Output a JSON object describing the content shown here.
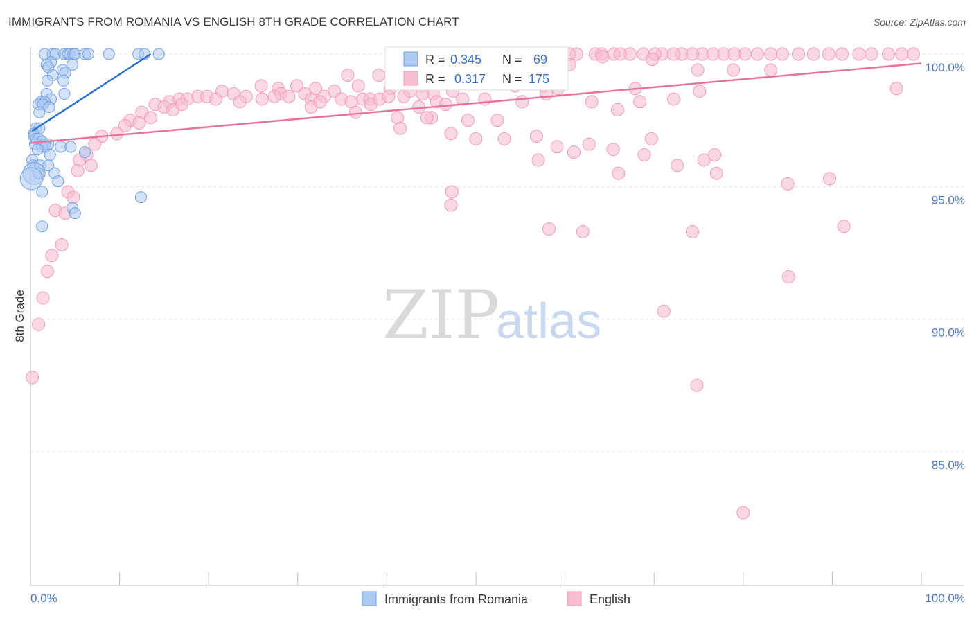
{
  "title": "IMMIGRANTS FROM ROMANIA VS ENGLISH 8TH GRADE CORRELATION CHART",
  "source": "Source: ZipAtlas.com",
  "watermark": {
    "zip": "ZIP",
    "atlas": "atlas"
  },
  "colors": {
    "blue": "#6f9fe0",
    "blue_fill": "#aecbf2",
    "blue_line": "#2a6fd0",
    "pink": "#f39ab8",
    "pink_fill": "#f7bed0",
    "pink_line": "#e8729a",
    "axis_text": "#4a77c8"
  },
  "stats": {
    "r_label": "R =",
    "n_label": "N =",
    "series": [
      {
        "name": "Immigrants from Romania",
        "r": "0.345",
        "n": "69"
      },
      {
        "name": "English",
        "r": "0.317",
        "n": "175"
      }
    ]
  },
  "chart_data": {
    "type": "scatter",
    "title": "IMMIGRANTS FROM ROMANIA VS ENGLISH 8TH GRADE CORRELATION CHART",
    "xlabel": "",
    "ylabel": "8th Grade",
    "xlim": [
      0,
      100
    ],
    "ylim": [
      80.5,
      101.0
    ],
    "x_tick_labels": [
      "0.0%",
      "100.0%"
    ],
    "y_ticks": [
      85,
      90,
      95,
      100
    ],
    "y_tick_labels": [
      "85.0%",
      "90.0%",
      "95.0%",
      "100.0%"
    ],
    "legend": [
      "Immigrants from Romania",
      "English"
    ],
    "legend_position": "bottom",
    "series": [
      {
        "name": "Immigrants from Romania",
        "trend": {
          "x": [
            0.2,
            13.5
          ],
          "y": [
            97.1,
            100.0
          ]
        },
        "points": [
          [
            1.6,
            100
          ],
          [
            2.5,
            100
          ],
          [
            2.8,
            100
          ],
          [
            3.8,
            100
          ],
          [
            4.2,
            100
          ],
          [
            4.4,
            100
          ],
          [
            4.8,
            100
          ],
          [
            5.0,
            100
          ],
          [
            6.1,
            100
          ],
          [
            6.5,
            100
          ],
          [
            8.8,
            100
          ],
          [
            12.1,
            100
          ],
          [
            12.8,
            100
          ],
          [
            14.4,
            100
          ],
          [
            2.3,
            99.7
          ],
          [
            1.8,
            99.6
          ],
          [
            4.7,
            99.6
          ],
          [
            2.0,
            99.5
          ],
          [
            3.6,
            99.4
          ],
          [
            3.9,
            99.3
          ],
          [
            2.5,
            99.2
          ],
          [
            1.9,
            99.0
          ],
          [
            3.7,
            99.0
          ],
          [
            3.8,
            98.5
          ],
          [
            1.8,
            98.5
          ],
          [
            2.3,
            98.3
          ],
          [
            1.2,
            98.2
          ],
          [
            1.6,
            98.2
          ],
          [
            0.9,
            98.1
          ],
          [
            1.4,
            98.1
          ],
          [
            2.1,
            98.0
          ],
          [
            1.0,
            97.8
          ],
          [
            0.6,
            97.2
          ],
          [
            1.0,
            97.2
          ],
          [
            0.4,
            97.0
          ],
          [
            0.4,
            96.9
          ],
          [
            0.6,
            96.8
          ],
          [
            0.9,
            96.8
          ],
          [
            1.3,
            96.7
          ],
          [
            0.5,
            96.6
          ],
          [
            1.6,
            96.6
          ],
          [
            2.0,
            96.6
          ],
          [
            1.3,
            96.5
          ],
          [
            1.7,
            96.5
          ],
          [
            0.8,
            96.4
          ],
          [
            3.4,
            96.5
          ],
          [
            4.5,
            96.5
          ],
          [
            6.1,
            96.3
          ],
          [
            2.2,
            96.2
          ],
          [
            0.2,
            96.0
          ],
          [
            0.3,
            95.8
          ],
          [
            1.1,
            95.8
          ],
          [
            2.0,
            95.8
          ],
          [
            0.4,
            95.5
          ],
          [
            0.9,
            95.5
          ],
          [
            2.7,
            95.5
          ],
          [
            0.1,
            95.3
          ],
          [
            3.1,
            95.2
          ],
          [
            1.3,
            94.8
          ],
          [
            12.4,
            94.6
          ],
          [
            4.7,
            94.2
          ],
          [
            5.0,
            94.0
          ],
          [
            1.3,
            93.5
          ]
        ]
      },
      {
        "name": "English",
        "trend": {
          "x": [
            0.0,
            100.0
          ],
          "y": [
            96.65,
            99.65
          ]
        },
        "points": [
          [
            58.9,
            100
          ],
          [
            61.3,
            100
          ],
          [
            63.4,
            100
          ],
          [
            65.5,
            100
          ],
          [
            67.3,
            100
          ],
          [
            68.8,
            100
          ],
          [
            70.9,
            100
          ],
          [
            73.1,
            100
          ],
          [
            75.4,
            100
          ],
          [
            77.8,
            100
          ],
          [
            80.2,
            100
          ],
          [
            83.1,
            100
          ],
          [
            86.2,
            100
          ],
          [
            89.6,
            100
          ],
          [
            93.0,
            100
          ],
          [
            96.3,
            100
          ],
          [
            99.1,
            100
          ],
          [
            60.5,
            100
          ],
          [
            64.1,
            100
          ],
          [
            66.2,
            100
          ],
          [
            70.1,
            100
          ],
          [
            72.2,
            100
          ],
          [
            74.3,
            100
          ],
          [
            76.6,
            100
          ],
          [
            79.0,
            100
          ],
          [
            81.6,
            100
          ],
          [
            84.4,
            100
          ],
          [
            87.9,
            100
          ],
          [
            91.1,
            100
          ],
          [
            94.4,
            100
          ],
          [
            97.8,
            100
          ],
          [
            57.8,
            99.8
          ],
          [
            54.8,
            99.6
          ],
          [
            64.2,
            99.9
          ],
          [
            69.8,
            99.8
          ],
          [
            48.3,
            99.6
          ],
          [
            50.3,
            99.5
          ],
          [
            52.6,
            99.4
          ],
          [
            56.7,
            99.5
          ],
          [
            60.5,
            99.6
          ],
          [
            74.9,
            99.4
          ],
          [
            78.9,
            99.4
          ],
          [
            83.1,
            99.4
          ],
          [
            35.6,
            99.2
          ],
          [
            39.1,
            99.2
          ],
          [
            43.3,
            99.3
          ],
          [
            46.1,
            99.2
          ],
          [
            51.4,
            99.1
          ],
          [
            36.8,
            98.8
          ],
          [
            40.4,
            98.7
          ],
          [
            44.0,
            98.8
          ],
          [
            47.5,
            98.9
          ],
          [
            50.6,
            98.9
          ],
          [
            54.4,
            98.8
          ],
          [
            57.6,
            98.8
          ],
          [
            25.9,
            98.8
          ],
          [
            27.8,
            98.7
          ],
          [
            29.9,
            98.8
          ],
          [
            32.0,
            98.7
          ],
          [
            34.1,
            98.6
          ],
          [
            21.5,
            98.6
          ],
          [
            22.8,
            98.5
          ],
          [
            24.2,
            98.4
          ],
          [
            28.1,
            98.5
          ],
          [
            29.0,
            98.4
          ],
          [
            30.8,
            98.5
          ],
          [
            33.0,
            98.4
          ],
          [
            15.6,
            98.2
          ],
          [
            16.7,
            98.3
          ],
          [
            17.6,
            98.3
          ],
          [
            18.8,
            98.4
          ],
          [
            19.8,
            98.4
          ],
          [
            20.8,
            98.3
          ],
          [
            23.5,
            98.2
          ],
          [
            26.0,
            98.3
          ],
          [
            27.4,
            98.4
          ],
          [
            31.5,
            98.3
          ],
          [
            34.9,
            98.3
          ],
          [
            36.0,
            98.2
          ],
          [
            37.3,
            98.3
          ],
          [
            38.1,
            98.3
          ],
          [
            41.9,
            98.4
          ],
          [
            42.6,
            98.6
          ],
          [
            45.2,
            98.5
          ],
          [
            14.0,
            98.1
          ],
          [
            15.0,
            98.0
          ],
          [
            16.0,
            97.9
          ],
          [
            17.0,
            98.1
          ],
          [
            12.5,
            97.8
          ],
          [
            13.5,
            97.6
          ],
          [
            11.2,
            97.5
          ],
          [
            12.2,
            97.4
          ],
          [
            10.6,
            97.3
          ],
          [
            9.7,
            97.0
          ],
          [
            8.0,
            96.9
          ],
          [
            7.2,
            96.6
          ],
          [
            6.3,
            96.2
          ],
          [
            5.5,
            96.0
          ],
          [
            5.3,
            95.6
          ],
          [
            6.8,
            95.8
          ],
          [
            4.2,
            94.8
          ],
          [
            4.8,
            94.6
          ],
          [
            2.8,
            94.1
          ],
          [
            3.9,
            94.0
          ],
          [
            3.5,
            92.8
          ],
          [
            2.4,
            92.4
          ],
          [
            1.9,
            91.8
          ],
          [
            1.4,
            90.8
          ],
          [
            0.9,
            89.8
          ],
          [
            0.2,
            87.8
          ],
          [
            44.0,
            98.5
          ],
          [
            45.6,
            98.2
          ],
          [
            46.6,
            98.1
          ],
          [
            47.4,
            98.6
          ],
          [
            48.5,
            98.3
          ],
          [
            51.0,
            98.3
          ],
          [
            52.4,
            97.5
          ],
          [
            55.2,
            98.2
          ],
          [
            59.2,
            98.7
          ],
          [
            63.0,
            98.2
          ],
          [
            67.9,
            98.7
          ],
          [
            72.2,
            98.3
          ],
          [
            65.9,
            97.9
          ],
          [
            69.7,
            96.8
          ],
          [
            36.5,
            97.8
          ],
          [
            43.6,
            98.0
          ],
          [
            41.2,
            97.6
          ],
          [
            41.5,
            97.2
          ],
          [
            45.0,
            97.6
          ],
          [
            47.2,
            97.0
          ],
          [
            50.0,
            96.8
          ],
          [
            53.2,
            96.8
          ],
          [
            56.8,
            96.9
          ],
          [
            59.1,
            96.5
          ],
          [
            61.0,
            96.3
          ],
          [
            62.7,
            96.6
          ],
          [
            65.4,
            96.4
          ],
          [
            68.9,
            96.2
          ],
          [
            72.6,
            95.8
          ],
          [
            75.6,
            96.0
          ],
          [
            76.8,
            96.2
          ],
          [
            31.5,
            98.0
          ],
          [
            32.5,
            98.2
          ],
          [
            38.2,
            98.1
          ],
          [
            39.2,
            98.3
          ],
          [
            40.2,
            98.4
          ],
          [
            57.0,
            96.0
          ],
          [
            66.0,
            95.5
          ],
          [
            77.0,
            95.5
          ],
          [
            85.0,
            95.1
          ],
          [
            89.7,
            95.3
          ],
          [
            47.3,
            94.8
          ],
          [
            47.2,
            94.3
          ],
          [
            62.0,
            93.3
          ],
          [
            58.2,
            93.4
          ],
          [
            74.3,
            93.3
          ],
          [
            91.3,
            93.5
          ],
          [
            85.1,
            91.6
          ],
          [
            71.1,
            90.3
          ],
          [
            74.8,
            87.5
          ],
          [
            80.0,
            82.7
          ],
          [
            97.2,
            98.7
          ],
          [
            68.4,
            98.2
          ],
          [
            75.1,
            98.6
          ],
          [
            57.9,
            98.5
          ],
          [
            54.3,
            98.9
          ],
          [
            44.5,
            97.6
          ],
          [
            49.1,
            97.5
          ]
        ]
      }
    ]
  }
}
